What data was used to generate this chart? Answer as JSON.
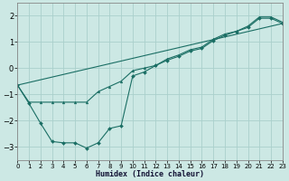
{
  "xlabel": "Humidex (Indice chaleur)",
  "bg_color": "#cce8e4",
  "grid_color": "#aad0cc",
  "line_color": "#1a6e64",
  "xlim": [
    0,
    23
  ],
  "ylim": [
    -3.5,
    2.5
  ],
  "xticks": [
    0,
    1,
    2,
    3,
    4,
    5,
    6,
    7,
    8,
    9,
    10,
    11,
    12,
    13,
    14,
    15,
    16,
    17,
    18,
    19,
    20,
    21,
    22,
    23
  ],
  "yticks": [
    -3,
    -2,
    -1,
    0,
    1,
    2
  ],
  "series1_x": [
    0,
    1,
    2,
    3,
    4,
    5,
    6,
    7,
    8,
    9,
    10,
    11,
    12,
    13,
    14,
    15,
    16,
    17,
    18,
    19,
    20,
    21,
    22,
    23
  ],
  "series1_y": [
    -0.65,
    -1.35,
    -2.1,
    -2.8,
    -2.85,
    -2.85,
    -3.05,
    -2.85,
    -2.3,
    -2.2,
    -0.3,
    -0.15,
    0.1,
    0.3,
    0.45,
    0.65,
    0.75,
    1.05,
    1.25,
    1.4,
    1.55,
    1.9,
    1.9,
    1.7
  ],
  "series2_x": [
    0,
    1,
    2,
    3,
    4,
    5,
    6,
    7,
    8,
    9,
    10,
    11,
    12,
    13,
    14,
    15,
    16,
    17,
    18,
    19,
    20,
    21,
    22,
    23
  ],
  "series2_y": [
    -0.65,
    -1.3,
    -1.3,
    -1.3,
    -1.3,
    -1.3,
    -1.3,
    -0.9,
    -0.7,
    -0.5,
    -0.1,
    0.0,
    0.1,
    0.35,
    0.5,
    0.7,
    0.8,
    1.1,
    1.3,
    1.4,
    1.6,
    1.95,
    1.95,
    1.75
  ],
  "series3_x": [
    0,
    23
  ],
  "series3_y": [
    -0.65,
    1.7
  ]
}
